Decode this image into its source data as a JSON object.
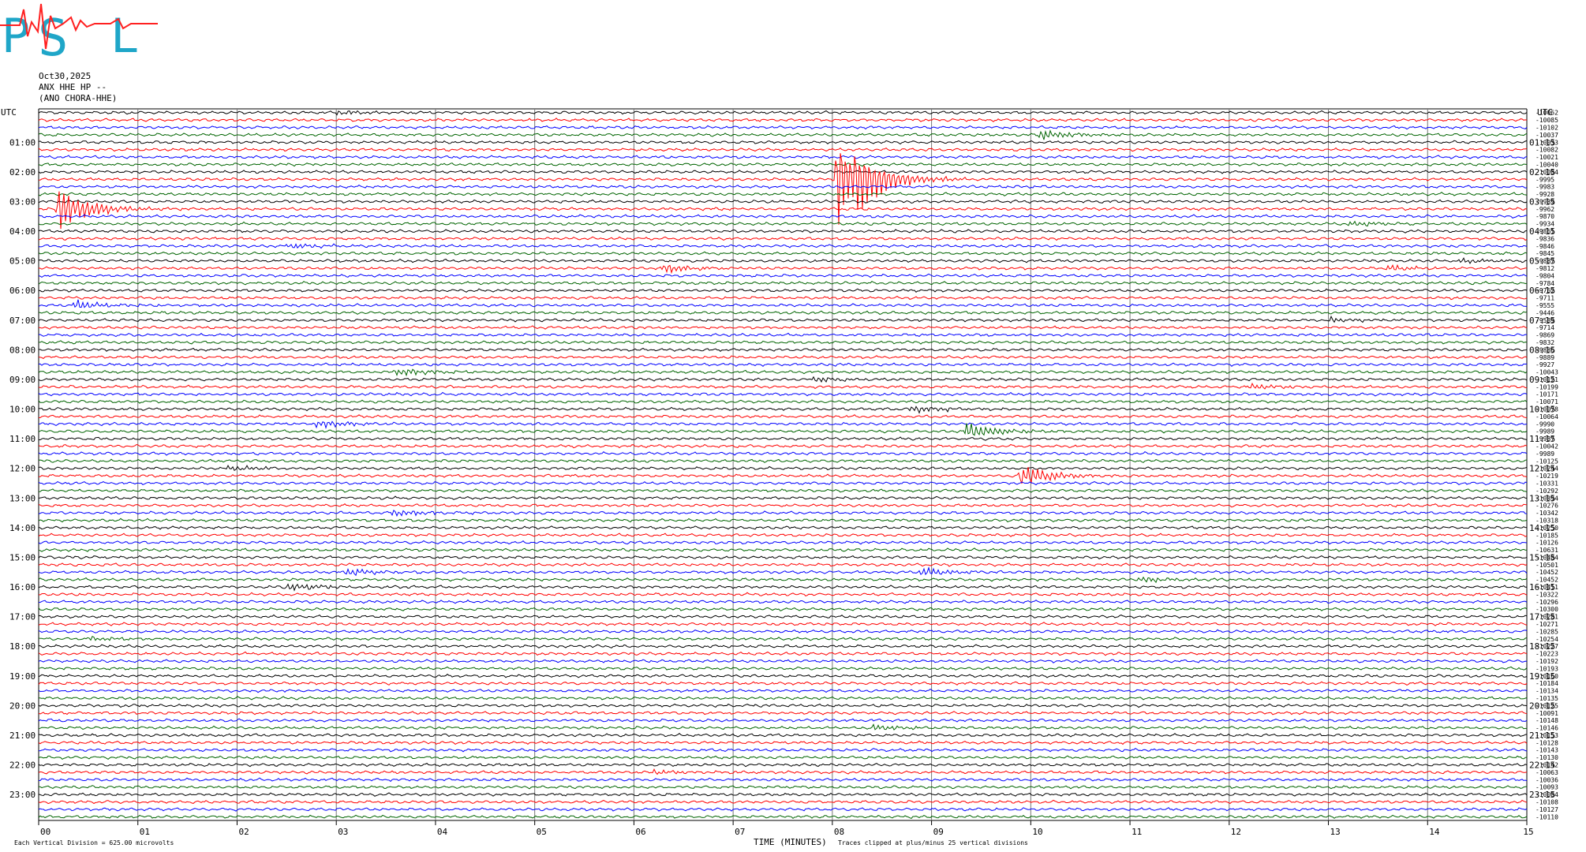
{
  "header": {
    "date": "Oct30,2025",
    "station": "ANX HHE HP --",
    "location": "(ANO CHORA-HHE)"
  },
  "chart_data": {
    "type": "line",
    "xlabel": "TIME (MINUTES)",
    "xlim": [
      0,
      15
    ],
    "x_ticks": [
      "00",
      "01",
      "02",
      "03",
      "04",
      "05",
      "06",
      "07",
      "08",
      "09",
      "10",
      "11",
      "12",
      "13",
      "14",
      "15"
    ],
    "left_axis_title": "UTC",
    "right_axis_title": "UTC",
    "left_hour_labels": [
      "01:00",
      "02:00",
      "03:00",
      "04:00",
      "05:00",
      "06:00",
      "07:00",
      "08:00",
      "09:00",
      "10:00",
      "11:00",
      "12:00",
      "13:00",
      "14:00",
      "15:00",
      "16:00",
      "17:00",
      "18:00",
      "19:00",
      "20:00",
      "21:00",
      "22:00",
      "23:00"
    ],
    "right_hour_labels": [
      "01:15",
      "02:15",
      "03:15",
      "04:15",
      "05:15",
      "06:15",
      "07:15",
      "08:15",
      "09:15",
      "10:15",
      "11:15",
      "12:15",
      "13:15",
      "14:15",
      "15:15",
      "16:15",
      "17:15",
      "18:15",
      "19:15",
      "20:15",
      "21:15",
      "22:15",
      "23:15"
    ],
    "trace_colors": [
      "#000000",
      "#ff0000",
      "#0000ff",
      "#006400"
    ],
    "trace_count": 96,
    "offsets": [
      -10062,
      -10085,
      -10102,
      -10037,
      -10033,
      -10082,
      -10021,
      -10040,
      -10084,
      -9995,
      -9983,
      -9928,
      -9939,
      -9962,
      -9870,
      -9934,
      -9861,
      -9836,
      -9846,
      -9845,
      -9887,
      -9812,
      -9804,
      -9784,
      -9762,
      -9711,
      -9555,
      -9446,
      -9589,
      -9714,
      -9869,
      -9832,
      -9886,
      -9889,
      -9927,
      -10043,
      -10121,
      -10199,
      -10171,
      -10071,
      -10078,
      -10064,
      -9990,
      -9989,
      -9937,
      -10042,
      -9989,
      -10125,
      -10244,
      -10219,
      -10331,
      -10292,
      -10394,
      -10276,
      -10342,
      -10318,
      -10250,
      -10185,
      -10126,
      -10631,
      -10484,
      -10501,
      -10452,
      -10452,
      -10411,
      -10322,
      -10296,
      -10300,
      -10281,
      -10271,
      -10285,
      -10254,
      -10227,
      -10223,
      -10192,
      -10193,
      -10160,
      -10184,
      -10134,
      -10135,
      -10125,
      -10091,
      -10148,
      -10146,
      -10153,
      -10128,
      -10143,
      -10130,
      -10142,
      -10063,
      -10036,
      -10093,
      -10084,
      -10108,
      -10127,
      -10110
    ],
    "events": [
      {
        "trace": 0,
        "minute": 3.0,
        "amp": 0.6
      },
      {
        "trace": 3,
        "minute": 10.1,
        "amp": 1.5
      },
      {
        "trace": 9,
        "minute": 8.05,
        "amp": 15
      },
      {
        "trace": 13,
        "minute": 0.2,
        "amp": 5.5
      },
      {
        "trace": 15,
        "minute": 13.2,
        "amp": 0.8
      },
      {
        "trace": 18,
        "minute": 2.5,
        "amp": 0.8
      },
      {
        "trace": 20,
        "minute": 14.3,
        "amp": 0.8
      },
      {
        "trace": 21,
        "minute": 6.3,
        "amp": 1.2
      },
      {
        "trace": 21,
        "minute": 13.6,
        "amp": 0.8
      },
      {
        "trace": 26,
        "minute": 0.35,
        "amp": 1.2
      },
      {
        "trace": 28,
        "minute": 13.0,
        "amp": 0.7
      },
      {
        "trace": 35,
        "minute": 3.6,
        "amp": 1.2
      },
      {
        "trace": 36,
        "minute": 7.8,
        "amp": 0.8
      },
      {
        "trace": 37,
        "minute": 12.2,
        "amp": 0.8
      },
      {
        "trace": 40,
        "minute": 8.8,
        "amp": 1.0
      },
      {
        "trace": 42,
        "minute": 2.8,
        "amp": 1.2
      },
      {
        "trace": 43,
        "minute": 9.35,
        "amp": 2.2
      },
      {
        "trace": 48,
        "minute": 1.9,
        "amp": 0.7
      },
      {
        "trace": 49,
        "minute": 9.9,
        "amp": 3.0
      },
      {
        "trace": 54,
        "minute": 3.55,
        "amp": 1.0
      },
      {
        "trace": 62,
        "minute": 3.1,
        "amp": 1.0
      },
      {
        "trace": 62,
        "minute": 8.9,
        "amp": 1.2
      },
      {
        "trace": 63,
        "minute": 11.1,
        "amp": 0.8
      },
      {
        "trace": 64,
        "minute": 2.5,
        "amp": 1.2
      },
      {
        "trace": 71,
        "minute": 0.5,
        "amp": 0.7
      },
      {
        "trace": 83,
        "minute": 8.4,
        "amp": 0.7
      },
      {
        "trace": 89,
        "minute": 6.2,
        "amp": 0.6
      }
    ]
  },
  "footer": {
    "scale_note": "Each Vertical Division =  625.00 microvolts",
    "clip_note": "Traces clipped at plus/minus 25 vertical divisions"
  }
}
